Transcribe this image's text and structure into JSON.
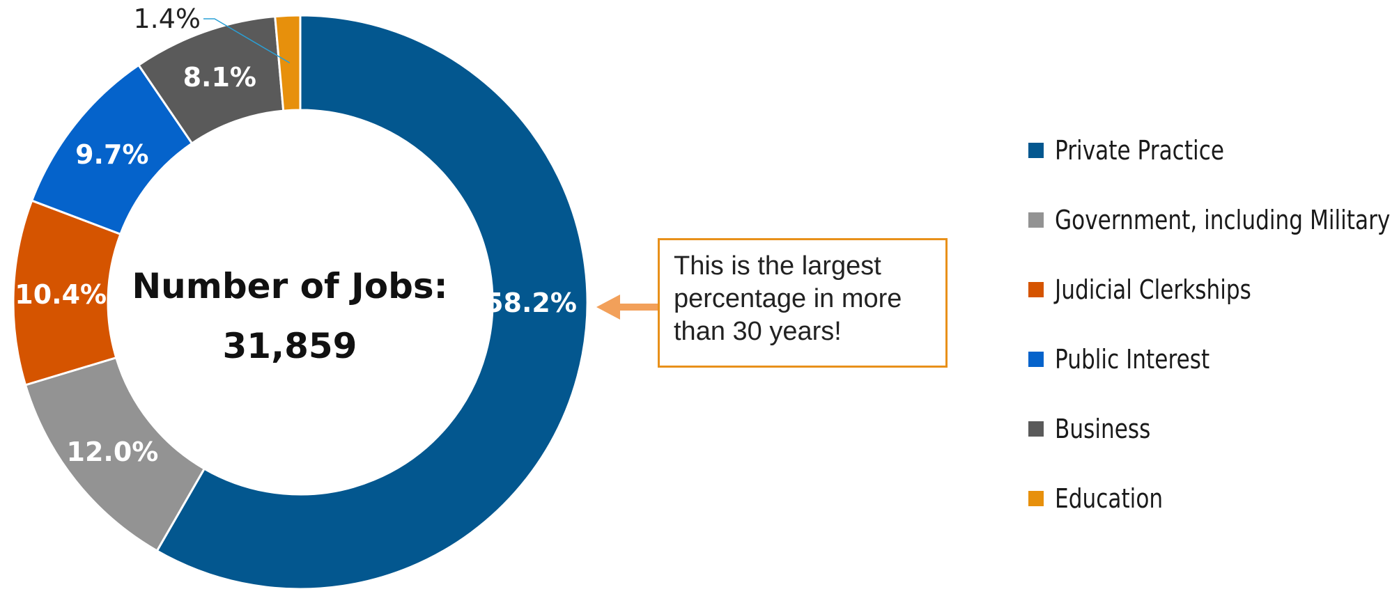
{
  "chart_data": {
    "type": "donut",
    "center_label": "Number of Jobs:",
    "center_value": "31,859",
    "slices": [
      {
        "name": "Private Practice",
        "value": 58.2,
        "label": "58.2%",
        "color": "#03578f"
      },
      {
        "name": "Government, including Military",
        "value": 12.0,
        "label": "12.0%",
        "color": "#939393"
      },
      {
        "name": "Judicial Clerkships",
        "value": 10.4,
        "label": "10.4%",
        "color": "#d55400"
      },
      {
        "name": "Public Interest",
        "value": 9.7,
        "label": "9.7%",
        "color": "#0563cb"
      },
      {
        "name": "Business",
        "value": 8.1,
        "label": "8.1%",
        "color": "#5a5a5a"
      },
      {
        "name": "Education",
        "value": 1.4,
        "label": "1.4%",
        "color": "#e7900c"
      }
    ],
    "legend_position": "right",
    "annotation": {
      "text_lines": [
        "This is the largest",
        "percentage in more",
        "than 30 years!"
      ],
      "points_to": "Private Practice",
      "border_color": "#e8901a",
      "arrow_color": "#f2a05a"
    }
  }
}
